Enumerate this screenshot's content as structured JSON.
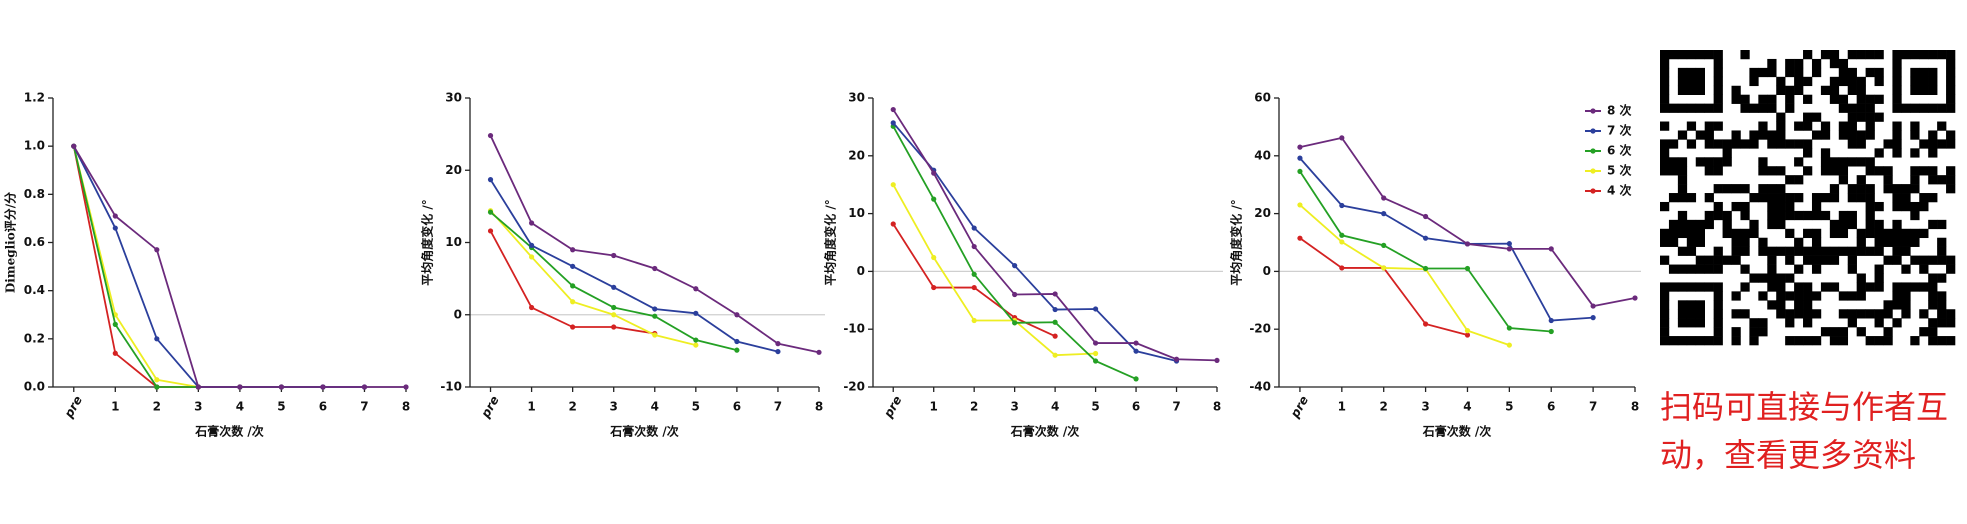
{
  "chart_data": [
    {
      "type": "line",
      "ylabel": "Dimeglio评分/分",
      "xlabel": "石膏次数 /次",
      "categories": [
        "pre",
        "1",
        "2",
        "3",
        "4",
        "5",
        "6",
        "7",
        "8"
      ],
      "ylim": [
        0,
        1.2
      ],
      "yticks": [
        {
          "value": 0,
          "label": "0.0"
        },
        0.2,
        0.4,
        0.6,
        0.8,
        {
          "value": 1,
          "label": "1.0"
        },
        1.2
      ],
      "zero_line": false,
      "series": [
        {
          "color": "#6b2a7c",
          "values": [
            1,
            0.71,
            0.57,
            0,
            0,
            0,
            0,
            0,
            0
          ]
        },
        {
          "color": "#2b3f9c",
          "values": [
            1,
            0.66,
            0.2,
            0,
            0,
            0,
            0,
            0,
            null
          ]
        },
        {
          "color": "#24a024",
          "values": [
            1,
            0.26,
            0,
            0,
            0,
            0,
            0,
            null,
            null
          ]
        },
        {
          "color": "#eeee22",
          "values": [
            1,
            0.3,
            0.03,
            0,
            0,
            0,
            null,
            null,
            null
          ]
        },
        {
          "color": "#d42222",
          "values": [
            1,
            0.14,
            0,
            0,
            0,
            null,
            null,
            null,
            null
          ]
        }
      ]
    },
    {
      "type": "line",
      "ylabel": "平均角度变化 /°",
      "xlabel": "石膏次数 /次",
      "categories": [
        "pre",
        "1",
        "2",
        "3",
        "4",
        "5",
        "6",
        "7",
        "8"
      ],
      "ylim": [
        -10,
        30
      ],
      "yticks": [
        -10,
        0,
        10,
        20,
        30
      ],
      "zero_line": true,
      "series": [
        {
          "color": "#6b2a7c",
          "values": [
            24.8,
            12.7,
            9,
            8.2,
            6.4,
            3.6,
            0,
            -4,
            -5.2
          ]
        },
        {
          "color": "#2b3f9c",
          "values": [
            18.7,
            9.6,
            6.7,
            3.8,
            0.8,
            0.2,
            -3.7,
            -5.1,
            null
          ]
        },
        {
          "color": "#24a024",
          "values": [
            14.2,
            9.3,
            4,
            1,
            -0.2,
            -3.5,
            -4.9,
            null,
            null
          ]
        },
        {
          "color": "#eeee22",
          "values": [
            14.4,
            8,
            1.8,
            0,
            -2.8,
            -4.2,
            null,
            null,
            null
          ]
        },
        {
          "color": "#d42222",
          "values": [
            11.6,
            1,
            -1.7,
            -1.7,
            -2.6,
            null,
            null,
            null,
            null
          ]
        }
      ]
    },
    {
      "type": "line",
      "ylabel": "平均角度变化 /°",
      "xlabel": "石膏次数 /次",
      "categories": [
        "pre",
        "1",
        "2",
        "3",
        "4",
        "5",
        "6",
        "7",
        "8"
      ],
      "ylim": [
        -20,
        30
      ],
      "yticks": [
        -20,
        -10,
        0,
        10,
        20,
        30
      ],
      "zero_line": true,
      "series": [
        {
          "color": "#6b2a7c",
          "values": [
            28,
            17,
            4.3,
            -4,
            -3.9,
            -12.4,
            -12.4,
            -15.2,
            -15.4
          ]
        },
        {
          "color": "#2b3f9c",
          "values": [
            25.7,
            17.5,
            7.5,
            1,
            -6.6,
            -6.5,
            -13.8,
            -15.5,
            null
          ]
        },
        {
          "color": "#24a024",
          "values": [
            25.1,
            12.5,
            -0.5,
            -8.9,
            -8.8,
            -15.5,
            -18.6,
            null,
            null
          ]
        },
        {
          "color": "#eeee22",
          "values": [
            15,
            2.4,
            -8.5,
            -8.5,
            -14.5,
            -14.2,
            null,
            null,
            null
          ]
        },
        {
          "color": "#d42222",
          "values": [
            8.2,
            -2.8,
            -2.8,
            -8,
            -11.2,
            null,
            null,
            null,
            null
          ]
        }
      ]
    },
    {
      "type": "line",
      "ylabel": "平均角度变化 /°",
      "xlabel": "石膏次数 /次",
      "categories": [
        "pre",
        "1",
        "2",
        "3",
        "4",
        "5",
        "6",
        "7",
        "8"
      ],
      "ylim": [
        -40,
        60
      ],
      "yticks": [
        -40,
        -20,
        0,
        20,
        40,
        60
      ],
      "zero_line": true,
      "legend": "upper right",
      "series": [
        {
          "name": "8 次",
          "color": "#6b2a7c",
          "values": [
            43,
            46.2,
            25.4,
            19,
            9.5,
            7.8,
            7.8,
            -12,
            -9.2
          ]
        },
        {
          "name": "7 次",
          "color": "#2b3f9c",
          "values": [
            39.2,
            22.8,
            20,
            11.5,
            9.5,
            9.6,
            -17,
            -16,
            null
          ]
        },
        {
          "name": "6 次",
          "color": "#24a024",
          "values": [
            34.6,
            12.5,
            9,
            1,
            1,
            -19.6,
            -20.8,
            null,
            null
          ]
        },
        {
          "name": "5 次",
          "color": "#eeee22",
          "values": [
            23,
            10.2,
            1.2,
            0.8,
            -20.5,
            -25.5,
            null,
            null,
            null
          ]
        },
        {
          "name": "4 次",
          "color": "#d42222",
          "values": [
            11.5,
            1.2,
            1.2,
            -18.2,
            -22,
            null,
            null,
            null,
            null
          ]
        }
      ]
    }
  ],
  "caption": [
    "扫码可直接与作者互",
    "动，查看更多资料"
  ]
}
